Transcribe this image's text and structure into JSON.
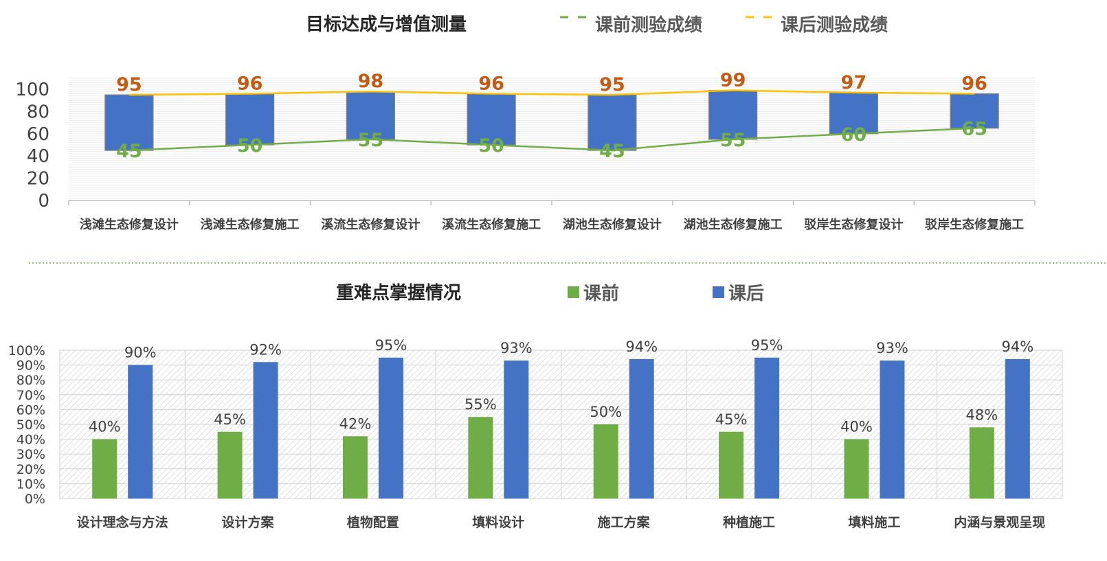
{
  "chart_data": [
    {
      "type": "line",
      "title": "目标达成与增值测量",
      "categories": [
        "浅滩生态修复设计",
        "浅滩生态修复施工",
        "溪流生态修复设计",
        "溪流生态修复施工",
        "湖池生态修复设计",
        "湖池生态修复施工",
        "驳岸生态修复设计",
        "驳岸生态修复施工"
      ],
      "series": [
        {
          "name": "课前测验成绩",
          "values": [
            45,
            50,
            55,
            50,
            45,
            55,
            60,
            65
          ],
          "color": "#70AD47"
        },
        {
          "name": "课后测验成绩",
          "values": [
            95,
            96,
            98,
            96,
            95,
            99,
            97,
            96
          ],
          "color": "#FFC000"
        }
      ],
      "range_bar_color": "#4472C4",
      "label_colors": {
        "before": "#70AD47",
        "after": "#C55A11"
      },
      "yticks": [
        "0",
        "20",
        "40",
        "60",
        "80",
        "100"
      ],
      "ylim": [
        0,
        110
      ],
      "legend": "top",
      "grid": true
    },
    {
      "type": "bar",
      "title": "重难点掌握情况",
      "categories": [
        "设计理念与方法",
        "设计方案",
        "植物配置",
        "填料设计",
        "施工方案",
        "种植施工",
        "填料施工",
        "内涵与景观呈现"
      ],
      "series": [
        {
          "name": "课前",
          "values": [
            40,
            45,
            42,
            55,
            50,
            45,
            40,
            48
          ],
          "labels": [
            "40%",
            "45%",
            "42%",
            "55%",
            "50%",
            "45%",
            "40%",
            "48%"
          ],
          "color": "#70AD47"
        },
        {
          "name": "课后",
          "values": [
            90,
            92,
            95,
            93,
            94,
            95,
            93,
            94
          ],
          "labels": [
            "90%",
            "92%",
            "95%",
            "93%",
            "94%",
            "95%",
            "93%",
            "94%"
          ],
          "color": "#4472C4"
        }
      ],
      "yticks": [
        "0%",
        "10%",
        "20%",
        "30%",
        "40%",
        "50%",
        "60%",
        "70%",
        "80%",
        "90%",
        "100%"
      ],
      "ylim": [
        0,
        100
      ],
      "legend": "top",
      "grid": true
    }
  ]
}
